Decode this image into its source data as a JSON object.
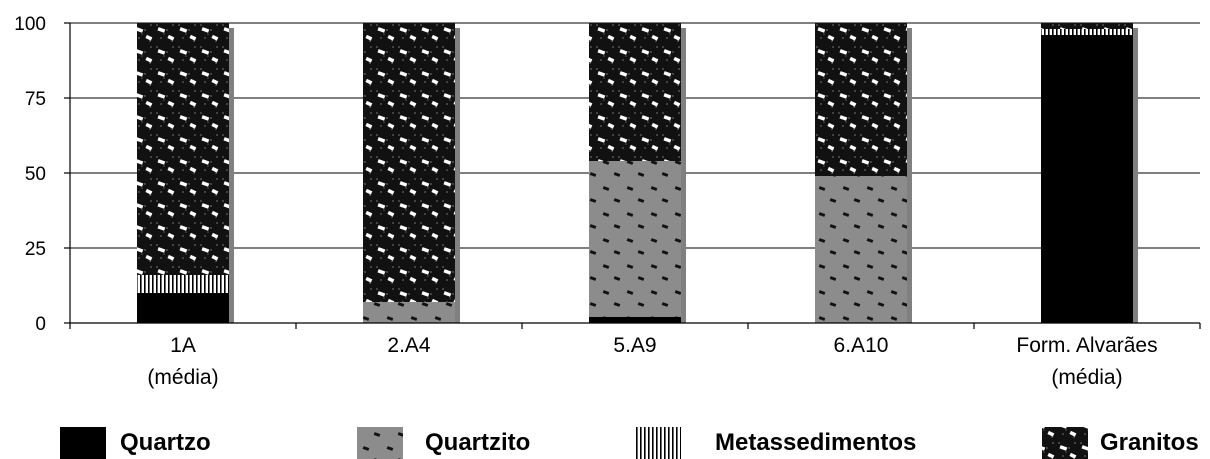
{
  "chart_data": {
    "type": "bar",
    "stacked": true,
    "categories": [
      [
        "1A",
        "(média)"
      ],
      [
        "2.A4"
      ],
      [
        "5.A9"
      ],
      [
        "6.A10"
      ],
      [
        "Form. Alvarães",
        "(média)"
      ]
    ],
    "series": [
      {
        "name": "Quartzo",
        "color": "#000000",
        "pattern": "solid",
        "values": [
          10,
          0,
          2,
          0,
          96
        ]
      },
      {
        "name": "Quartzito",
        "color": "#8c8c8c",
        "pattern": "gray-with-dark-flecks",
        "values": [
          0,
          7,
          52,
          49,
          0
        ]
      },
      {
        "name": "Metassedimentos",
        "color": "#ffffff",
        "pattern": "vertical-lines",
        "values": [
          6,
          0,
          0,
          0,
          2
        ]
      },
      {
        "name": "Granitos",
        "color": "#111111",
        "pattern": "dark-dots-with-white-flecks",
        "values": [
          84,
          93,
          46,
          51,
          2
        ]
      }
    ],
    "yticks": [
      0,
      25,
      50,
      75,
      100
    ],
    "ylim": [
      0,
      100
    ],
    "grid": true,
    "legend": "bottom"
  }
}
